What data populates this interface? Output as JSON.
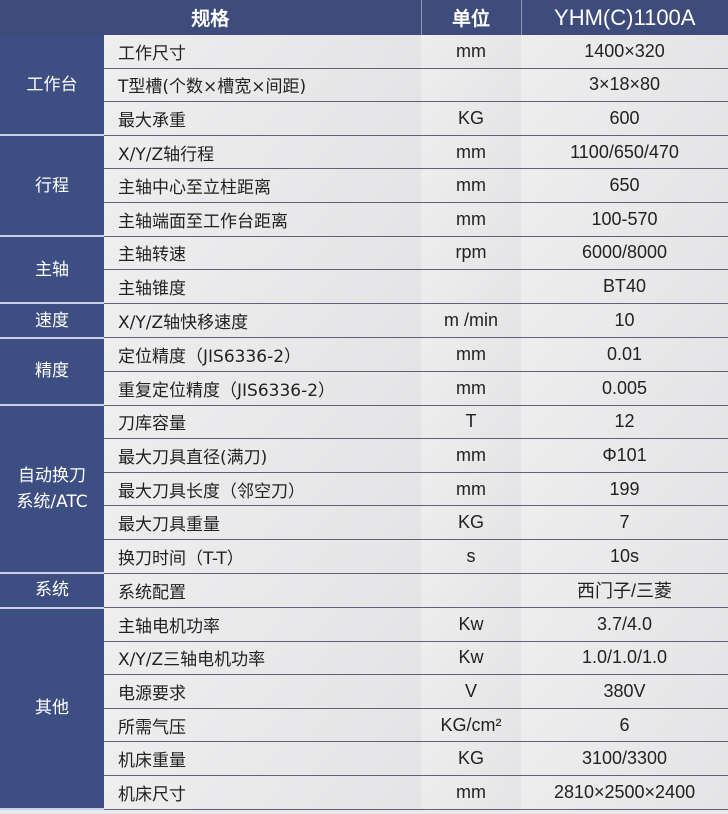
{
  "header": {
    "spec": "规格",
    "unit": "单位",
    "model": "YHM(C)1100A"
  },
  "groups": [
    {
      "name": "工作台",
      "rows": [
        {
          "spec": "工作尺寸",
          "unit": "mm",
          "value": "1400×320"
        },
        {
          "spec": "T型槽(个数×槽宽×间距)",
          "unit": "",
          "value": "3×18×80"
        },
        {
          "spec": "最大承重",
          "unit": "KG",
          "value": "600"
        }
      ]
    },
    {
      "name": "行程",
      "rows": [
        {
          "spec": "X/Y/Z轴行程",
          "unit": "mm",
          "value": "1100/650/470"
        },
        {
          "spec": "主轴中心至立柱距离",
          "unit": "mm",
          "value": "650"
        },
        {
          "spec": "主轴端面至工作台距离",
          "unit": "mm",
          "value": "100-570"
        }
      ]
    },
    {
      "name": "主轴",
      "rows": [
        {
          "spec": "主轴转速",
          "unit": "rpm",
          "value": "6000/8000"
        },
        {
          "spec": "主轴锥度",
          "unit": "",
          "value": "BT40"
        }
      ]
    },
    {
      "name": "速度",
      "rows": [
        {
          "spec": "X/Y/Z轴快移速度",
          "unit": "m /min",
          "value": "10"
        }
      ]
    },
    {
      "name": "精度",
      "rows": [
        {
          "spec": "定位精度（JIS6336-2）",
          "unit": "mm",
          "value": "0.01"
        },
        {
          "spec": "重复定位精度（JIS6336-2）",
          "unit": "mm",
          "value": "0.005"
        }
      ]
    },
    {
      "name": "自动换刀\n系统/ATC",
      "rows": [
        {
          "spec": "刀库容量",
          "unit": "T",
          "value": "12"
        },
        {
          "spec": "最大刀具直径(满刀)",
          "unit": "mm",
          "value": "Φ101"
        },
        {
          "spec": "最大刀具长度（邻空刀）",
          "unit": "mm",
          "value": "199"
        },
        {
          "spec": "最大刀具重量",
          "unit": "KG",
          "value": "7"
        },
        {
          "spec": "换刀时间（T-T）",
          "unit": "s",
          "value": "10s"
        }
      ]
    },
    {
      "name": "系统",
      "rows": [
        {
          "spec": "系统配置",
          "unit": "",
          "value": "西门子/三菱"
        }
      ]
    },
    {
      "name": "其他",
      "rows": [
        {
          "spec": "主轴电机功率",
          "unit": "Kw",
          "value": "3.7/4.0"
        },
        {
          "spec": "X/Y/Z三轴电机功率",
          "unit": "Kw",
          "value": "1.0/1.0/1.0"
        },
        {
          "spec": "电源要求",
          "unit": "V",
          "value": "380V"
        },
        {
          "spec": "所需气压",
          "unit": "KG/cm²",
          "value": "6"
        },
        {
          "spec": "机床重量",
          "unit": "KG",
          "value": "3100/3300"
        },
        {
          "spec": "机床尺寸",
          "unit": "mm",
          "value": "2810×2500×2400"
        }
      ]
    }
  ]
}
